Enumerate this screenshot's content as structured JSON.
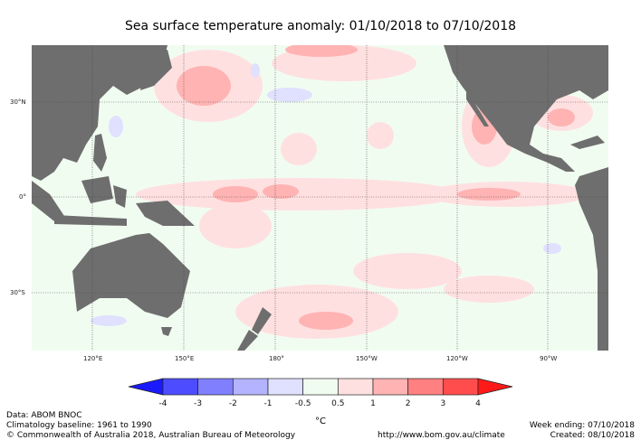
{
  "title": "Sea surface temperature anomaly: 01/10/2018 to 07/10/2018",
  "map": {
    "lon_labels": [
      "120°E",
      "150°E",
      "180°",
      "150°W",
      "120°W",
      "90°W"
    ],
    "lat_labels": [
      "30°N",
      "0°",
      "30°S"
    ],
    "colors": {
      "land": "#6e6e6e",
      "neutral": "#f1fcf1",
      "grid": "#444444"
    }
  },
  "colorbar": {
    "ticks": [
      "-4",
      "-3",
      "-2",
      "-1",
      "-0.5",
      "0.5",
      "1",
      "2",
      "3",
      "4"
    ],
    "colors": [
      "#1a1aff",
      "#4d4dff",
      "#8080ff",
      "#b3b3ff",
      "#e0e0ff",
      "#f1fcf1",
      "#ffe0e0",
      "#ffb3b3",
      "#ff8080",
      "#ff4d4d",
      "#ff1a1a"
    ],
    "unit": "°C"
  },
  "footer": {
    "data": "Data: ABOM BNOC",
    "baseline": "Climatology baseline: 1961 to 1990",
    "copyright": "© Commonwealth of Australia 2018, Australian Bureau of Meteorology",
    "url": "http://www.bom.gov.au/climate",
    "week_ending": "Week ending: 07/10/2018",
    "created": "Created: 08/10/2018"
  }
}
